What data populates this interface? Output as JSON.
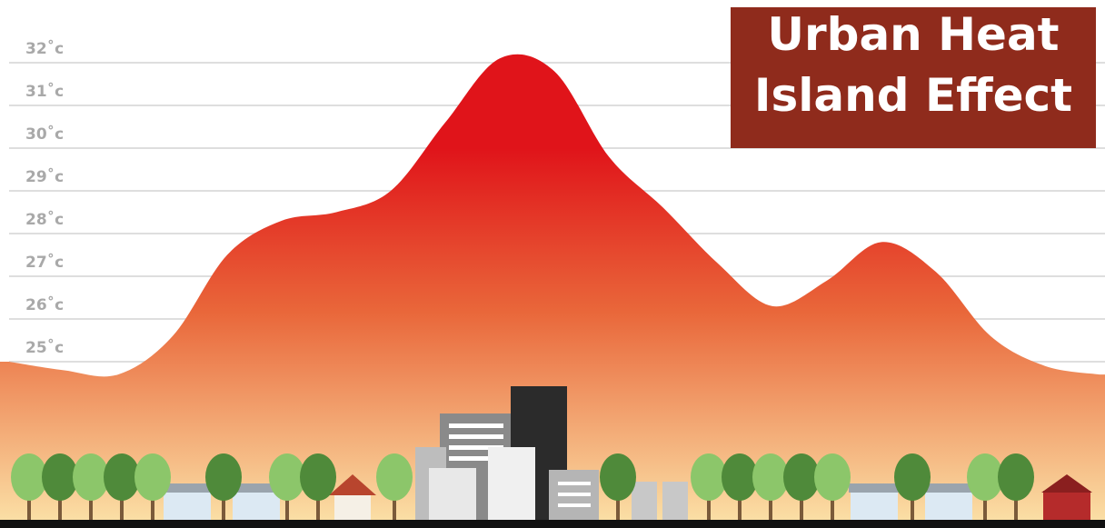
{
  "chart_data": {
    "type": "area",
    "title": "Urban Heat Island Effect",
    "categories": [
      null,
      null,
      null,
      null,
      null,
      null,
      null,
      null,
      null,
      null,
      null,
      null,
      null,
      null,
      null,
      null,
      null,
      null,
      null,
      null,
      null
    ],
    "values": [
      25.0,
      24.8,
      24.7,
      25.6,
      27.5,
      28.3,
      28.5,
      29.0,
      30.6,
      32.1,
      31.8,
      29.8,
      28.6,
      27.3,
      26.3,
      26.9,
      27.8,
      27.1,
      25.6,
      24.9,
      24.7
    ],
    "colors": [
      "#e0141a",
      "#e9673a",
      "#fbe0a6"
    ],
    "ylim": [
      25,
      32
    ],
    "yticks": [
      {
        "value": 25,
        "label": "25˚c"
      },
      {
        "value": 26,
        "label": "26˚c"
      },
      {
        "value": 27,
        "label": "27˚c"
      },
      {
        "value": 28,
        "label": "28˚c"
      },
      {
        "value": 29,
        "label": "29˚c"
      },
      {
        "value": 30,
        "label": "30˚c"
      },
      {
        "value": 31,
        "label": "31˚c"
      },
      {
        "value": 32,
        "label": "32˚c"
      }
    ],
    "grid": true
  }
}
